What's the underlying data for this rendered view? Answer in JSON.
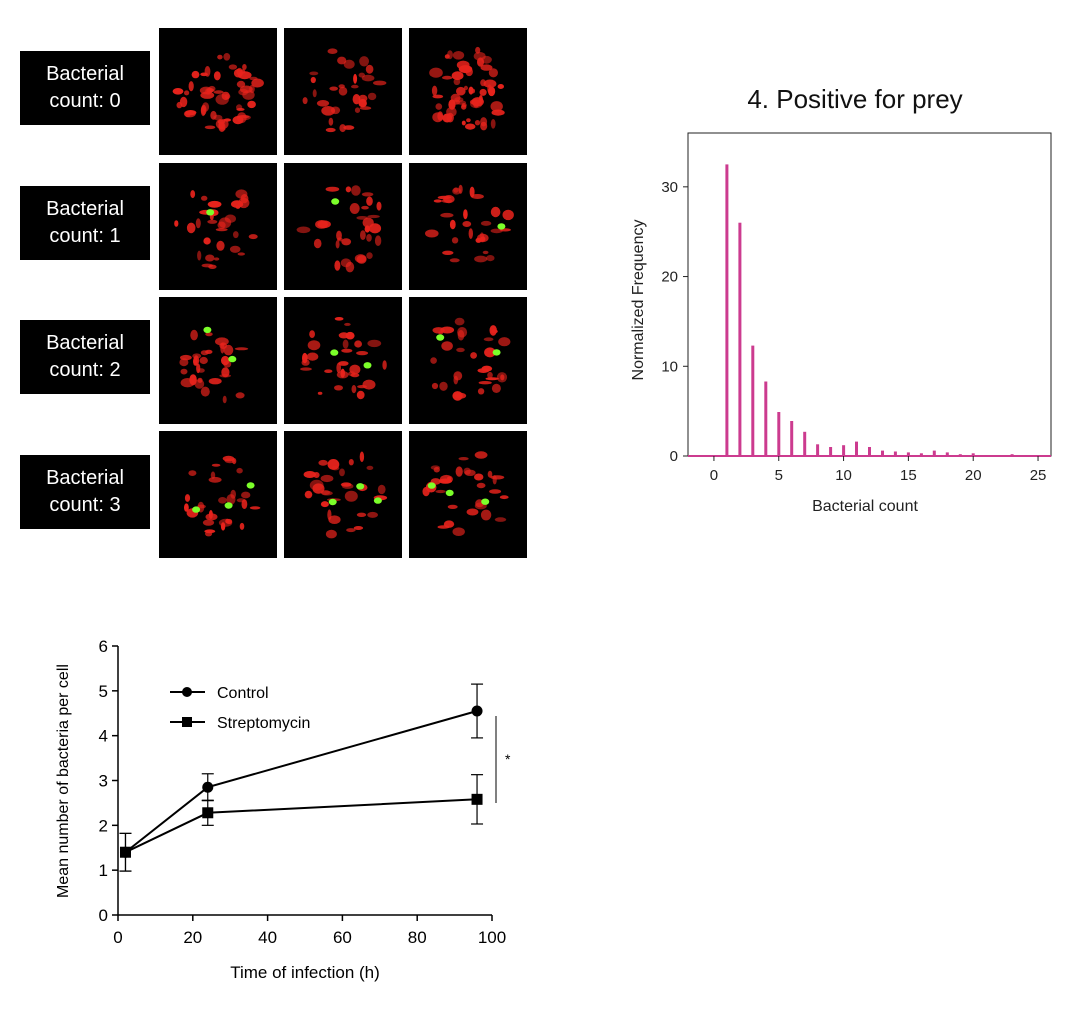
{
  "micrograph_panel": {
    "rows": [
      {
        "label_line1": "Bacterial",
        "label_line2": "count: 0",
        "bacteria_per_cell": [
          0,
          0,
          0
        ]
      },
      {
        "label_line1": "Bacterial",
        "label_line2": "count: 1",
        "bacteria_per_cell": [
          1,
          1,
          1
        ]
      },
      {
        "label_line1": "Bacterial",
        "label_line2": "count: 2",
        "bacteria_per_cell": [
          2,
          2,
          2
        ]
      },
      {
        "label_line1": "Bacterial",
        "label_line2": "count: 3",
        "bacteria_per_cell": [
          3,
          3,
          3
        ]
      }
    ],
    "colors": {
      "cell_stain": "#e8231c",
      "bacteria": "#7cff2a",
      "background": "#000000"
    }
  },
  "chart_data": [
    {
      "type": "bar",
      "title": "4. Positive for prey",
      "xlabel": "Bacterial count",
      "ylabel": "Normalized Frequency",
      "xlim": [
        -2,
        26
      ],
      "ylim": [
        0,
        36
      ],
      "xticks": [
        0,
        5,
        10,
        15,
        20,
        25
      ],
      "yticks": [
        0,
        10,
        20,
        30
      ],
      "categories": [
        1,
        2,
        3,
        4,
        5,
        6,
        7,
        8,
        9,
        10,
        11,
        12,
        13,
        14,
        15,
        16,
        17,
        18,
        19,
        20,
        21,
        22,
        23,
        24,
        25
      ],
      "values": [
        32.5,
        26.0,
        12.3,
        8.3,
        4.9,
        3.9,
        2.7,
        1.3,
        1.0,
        1.2,
        1.6,
        1.0,
        0.6,
        0.5,
        0.4,
        0.3,
        0.6,
        0.4,
        0.2,
        0.3,
        0.1,
        0.1,
        0.2,
        0.1,
        0.1
      ],
      "color": "#cc3b8f",
      "grid": false,
      "legend": "none"
    },
    {
      "type": "line",
      "xlabel": "Time of infection (h)",
      "ylabel": "Mean number of bacteria per cell",
      "xlim": [
        0,
        100
      ],
      "ylim": [
        0,
        6
      ],
      "xticks": [
        0,
        20,
        40,
        60,
        80,
        100
      ],
      "yticks": [
        0,
        1,
        2,
        3,
        4,
        5,
        6
      ],
      "x": [
        2,
        24,
        96
      ],
      "series": [
        {
          "name": "Control",
          "marker": "circle",
          "values": [
            1.4,
            2.85,
            4.55
          ],
          "error": [
            0.42,
            0.3,
            0.6
          ]
        },
        {
          "name": "Streptomycin",
          "marker": "square",
          "values": [
            1.4,
            2.28,
            2.58
          ],
          "error": [
            0.42,
            0.28,
            0.55
          ]
        }
      ],
      "significance_label": "*",
      "legend": "top-left",
      "grid": false,
      "color": "#000000"
    }
  ]
}
